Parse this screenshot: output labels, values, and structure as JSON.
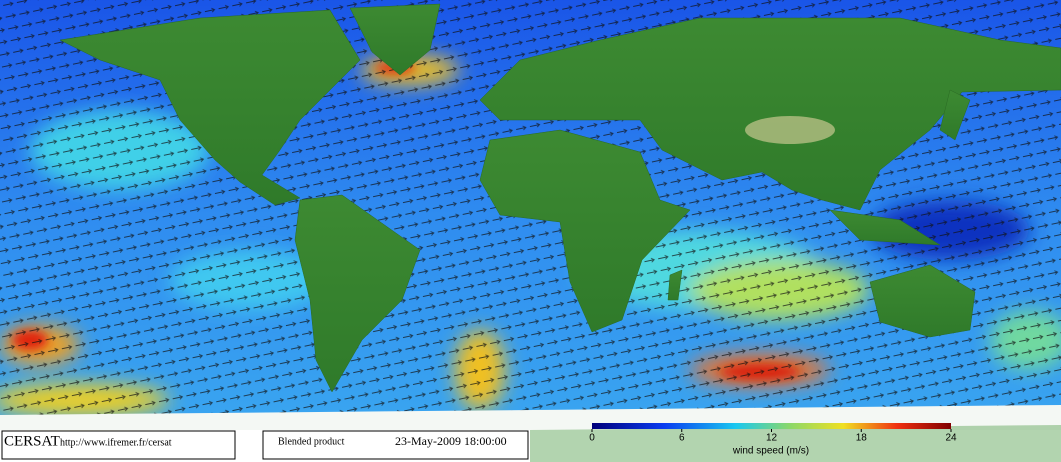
{
  "footer": {
    "logo": "CERSAT",
    "url": "http://www.ifremer.fr/cersat",
    "product": "Blended product",
    "date": "23-May-2009 18:00:00"
  },
  "colorbar": {
    "label": "wind speed (m/s)",
    "lim": [
      0,
      24
    ],
    "ticks": [
      0,
      6,
      12,
      18,
      24
    ]
  }
}
